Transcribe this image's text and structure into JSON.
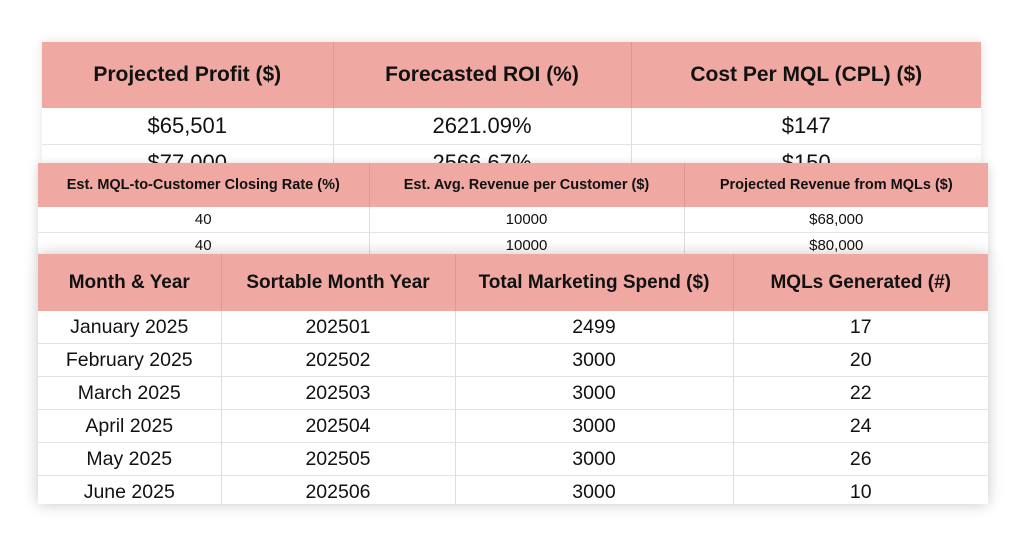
{
  "summary": {
    "headers": [
      "Projected Profit ($)",
      "Forecasted ROI (%)",
      "Cost Per MQL (CPL) ($)"
    ],
    "rows": [
      [
        "$65,501",
        "2621.09%",
        "$147"
      ],
      [
        "$77,000",
        "2566.67%",
        "$150"
      ]
    ]
  },
  "revenue": {
    "headers": [
      "Est. MQL-to-Customer Closing Rate (%)",
      "Est. Avg. Revenue per Customer ($)",
      "Projected Revenue from MQLs ($)"
    ],
    "rows": [
      [
        "40",
        "10000",
        "$68,000"
      ],
      [
        "40",
        "10000",
        "$80,000"
      ]
    ]
  },
  "monthly": {
    "headers": [
      "Month & Year",
      "Sortable Month Year",
      "Total Marketing Spend ($)",
      "MQLs Generated (#)"
    ],
    "rows": [
      [
        "January 2025",
        "202501",
        "2499",
        "17"
      ],
      [
        "February 2025",
        "202502",
        "3000",
        "20"
      ],
      [
        "March 2025",
        "202503",
        "3000",
        "22"
      ],
      [
        "April 2025",
        "202504",
        "3000",
        "24"
      ],
      [
        "May 2025",
        "202505",
        "3000",
        "26"
      ],
      [
        "June 2025",
        "202506",
        "3000",
        "10"
      ]
    ]
  },
  "colors": {
    "header_bg": "#efa9a2"
  }
}
